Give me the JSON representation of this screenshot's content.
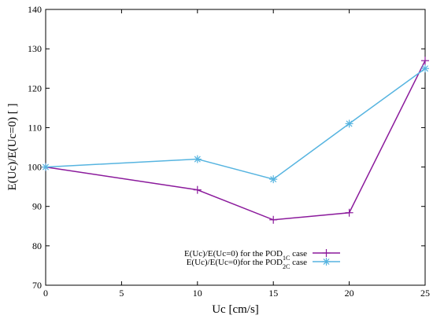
{
  "chart_data": {
    "type": "line",
    "xlabel": "Uc [cm/s]",
    "ylabel": "E(Uc)/E(Uc=0) [ ]",
    "xlim": [
      0,
      25
    ],
    "ylim": [
      70,
      140
    ],
    "xticks": [
      0,
      5,
      10,
      15,
      20,
      25
    ],
    "yticks": [
      70,
      80,
      90,
      100,
      110,
      120,
      130,
      140
    ],
    "grid": false,
    "legend_position": "bottom-right",
    "x": [
      0,
      10,
      15,
      20,
      25
    ],
    "series": [
      {
        "name": "E(Uc)/E(Uc=0) for the POD1C case",
        "name_prefix": "E(Uc)/E(Uc=0) for the POD",
        "name_sub": "1C",
        "name_suffix": " case",
        "color": "#8b1a9c",
        "marker": "plus",
        "values": [
          100,
          94.2,
          86.6,
          88.4,
          127
        ]
      },
      {
        "name": "E(Uc)/E(Uc=0)for the POD2C case",
        "name_prefix": "E(Uc)/E(Uc=0)for the POD",
        "name_sub": "2C",
        "name_suffix": " case",
        "color": "#56b4e0",
        "marker": "star",
        "values": [
          100,
          102,
          96.9,
          111,
          125
        ]
      }
    ]
  }
}
